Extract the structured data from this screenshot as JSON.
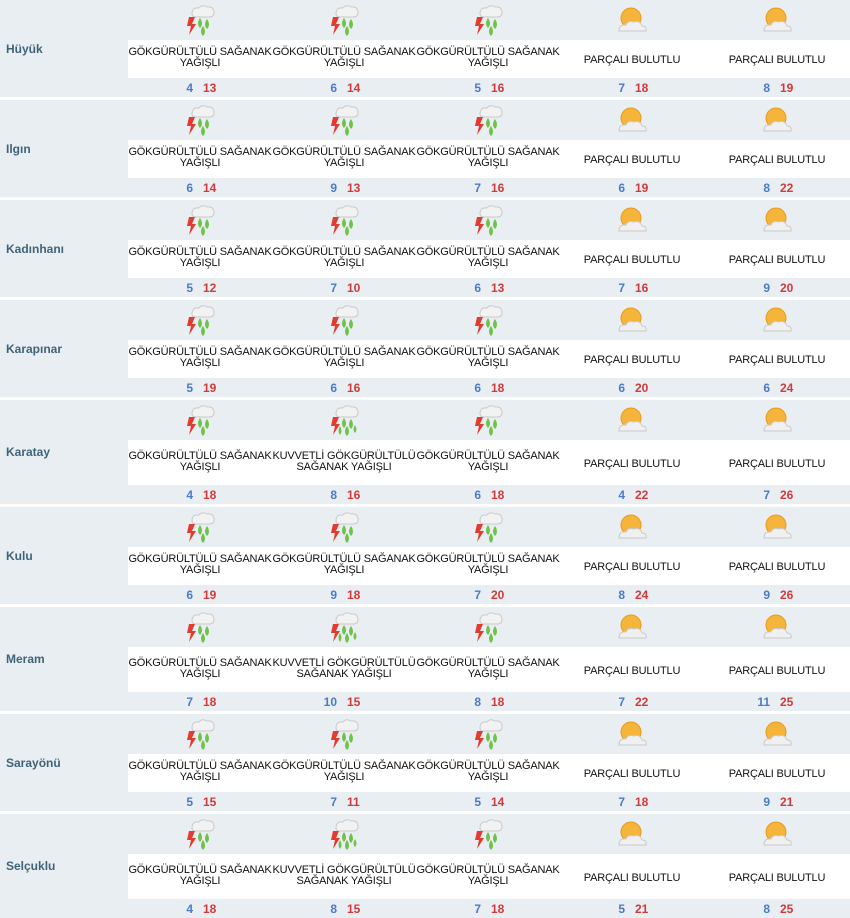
{
  "colors": {
    "row_bg": "#e9eef2",
    "city_text": "#3f6478",
    "temp_min": "#4a7bc4",
    "temp_max": "#d13a3a",
    "lightning": "#e23b2f",
    "rain_drop": "#6fc24b",
    "sun": "#f5b43a",
    "cloud": "#f0f0f0"
  },
  "rows": [
    {
      "city": "Hüyük",
      "days": [
        {
          "icon": "thunderstorm-icon",
          "cond": "GÖKGÜRÜLTÜLÜ SAĞANAK YAĞIŞLI",
          "min": "4",
          "max": "13"
        },
        {
          "icon": "thunderstorm-icon",
          "cond": "GÖKGÜRÜLTÜLÜ SAĞANAK YAĞIŞLI",
          "min": "6",
          "max": "14"
        },
        {
          "icon": "thunderstorm-icon",
          "cond": "GÖKGÜRÜLTÜLÜ SAĞANAK YAĞIŞLI",
          "min": "5",
          "max": "16"
        },
        {
          "icon": "partly-cloudy-icon",
          "cond": "PARÇALI BULUTLU",
          "min": "7",
          "max": "18"
        },
        {
          "icon": "partly-cloudy-icon",
          "cond": "PARÇALI BULUTLU",
          "min": "8",
          "max": "19"
        }
      ]
    },
    {
      "city": "Ilgın",
      "days": [
        {
          "icon": "thunderstorm-icon",
          "cond": "GÖKGÜRÜLTÜLÜ SAĞANAK YAĞIŞLI",
          "min": "6",
          "max": "14"
        },
        {
          "icon": "thunderstorm-icon",
          "cond": "GÖKGÜRÜLTÜLÜ SAĞANAK YAĞIŞLI",
          "min": "9",
          "max": "13"
        },
        {
          "icon": "thunderstorm-icon",
          "cond": "GÖKGÜRÜLTÜLÜ SAĞANAK YAĞIŞLI",
          "min": "7",
          "max": "16"
        },
        {
          "icon": "partly-cloudy-icon",
          "cond": "PARÇALI BULUTLU",
          "min": "6",
          "max": "19"
        },
        {
          "icon": "partly-cloudy-icon",
          "cond": "PARÇALI BULUTLU",
          "min": "8",
          "max": "22"
        }
      ]
    },
    {
      "city": "Kadınhanı",
      "days": [
        {
          "icon": "thunderstorm-icon",
          "cond": "GÖKGÜRÜLTÜLÜ SAĞANAK YAĞIŞLI",
          "min": "5",
          "max": "12"
        },
        {
          "icon": "thunderstorm-icon",
          "cond": "GÖKGÜRÜLTÜLÜ SAĞANAK YAĞIŞLI",
          "min": "7",
          "max": "10"
        },
        {
          "icon": "thunderstorm-icon",
          "cond": "GÖKGÜRÜLTÜLÜ SAĞANAK YAĞIŞLI",
          "min": "6",
          "max": "13"
        },
        {
          "icon": "partly-cloudy-icon",
          "cond": "PARÇALI BULUTLU",
          "min": "7",
          "max": "16"
        },
        {
          "icon": "partly-cloudy-icon",
          "cond": "PARÇALI BULUTLU",
          "min": "9",
          "max": "20"
        }
      ]
    },
    {
      "city": "Karapınar",
      "days": [
        {
          "icon": "thunderstorm-icon",
          "cond": "GÖKGÜRÜLTÜLÜ SAĞANAK YAĞIŞLI",
          "min": "5",
          "max": "19"
        },
        {
          "icon": "thunderstorm-icon",
          "cond": "GÖKGÜRÜLTÜLÜ SAĞANAK YAĞIŞLI",
          "min": "6",
          "max": "16"
        },
        {
          "icon": "thunderstorm-icon",
          "cond": "GÖKGÜRÜLTÜLÜ SAĞANAK YAĞIŞLI",
          "min": "6",
          "max": "18"
        },
        {
          "icon": "partly-cloudy-icon",
          "cond": "PARÇALI BULUTLU",
          "min": "6",
          "max": "20"
        },
        {
          "icon": "partly-cloudy-icon",
          "cond": "PARÇALI BULUTLU",
          "min": "6",
          "max": "24"
        }
      ]
    },
    {
      "city": "Karatay",
      "days": [
        {
          "icon": "thunderstorm-icon",
          "cond": "GÖKGÜRÜLTÜLÜ SAĞANAK YAĞIŞLI",
          "min": "4",
          "max": "18"
        },
        {
          "icon": "heavy-thunderstorm-icon",
          "cond": "KUVVETLİ GÖKGÜRÜLTÜLÜ SAĞANAK YAĞIŞLI",
          "min": "8",
          "max": "16"
        },
        {
          "icon": "thunderstorm-icon",
          "cond": "GÖKGÜRÜLTÜLÜ SAĞANAK YAĞIŞLI",
          "min": "6",
          "max": "18"
        },
        {
          "icon": "partly-cloudy-icon",
          "cond": "PARÇALI BULUTLU",
          "min": "4",
          "max": "22"
        },
        {
          "icon": "partly-cloudy-icon",
          "cond": "PARÇALI BULUTLU",
          "min": "7",
          "max": "26"
        }
      ]
    },
    {
      "city": "Kulu",
      "days": [
        {
          "icon": "thunderstorm-icon",
          "cond": "GÖKGÜRÜLTÜLÜ SAĞANAK YAĞIŞLI",
          "min": "6",
          "max": "19"
        },
        {
          "icon": "thunderstorm-icon",
          "cond": "GÖKGÜRÜLTÜLÜ SAĞANAK YAĞIŞLI",
          "min": "9",
          "max": "18"
        },
        {
          "icon": "thunderstorm-icon",
          "cond": "GÖKGÜRÜLTÜLÜ SAĞANAK YAĞIŞLI",
          "min": "7",
          "max": "20"
        },
        {
          "icon": "partly-cloudy-icon",
          "cond": "PARÇALI BULUTLU",
          "min": "8",
          "max": "24"
        },
        {
          "icon": "partly-cloudy-icon",
          "cond": "PARÇALI BULUTLU",
          "min": "9",
          "max": "26"
        }
      ]
    },
    {
      "city": "Meram",
      "days": [
        {
          "icon": "thunderstorm-icon",
          "cond": "GÖKGÜRÜLTÜLÜ SAĞANAK YAĞIŞLI",
          "min": "7",
          "max": "18"
        },
        {
          "icon": "heavy-thunderstorm-icon",
          "cond": "KUVVETLİ GÖKGÜRÜLTÜLÜ SAĞANAK YAĞIŞLI",
          "min": "10",
          "max": "15"
        },
        {
          "icon": "thunderstorm-icon",
          "cond": "GÖKGÜRÜLTÜLÜ SAĞANAK YAĞIŞLI",
          "min": "8",
          "max": "18"
        },
        {
          "icon": "partly-cloudy-icon",
          "cond": "PARÇALI BULUTLU",
          "min": "7",
          "max": "22"
        },
        {
          "icon": "partly-cloudy-icon",
          "cond": "PARÇALI BULUTLU",
          "min": "11",
          "max": "25"
        }
      ]
    },
    {
      "city": "Sarayönü",
      "days": [
        {
          "icon": "thunderstorm-icon",
          "cond": "GÖKGÜRÜLTÜLÜ SAĞANAK YAĞIŞLI",
          "min": "5",
          "max": "15"
        },
        {
          "icon": "thunderstorm-icon",
          "cond": "GÖKGÜRÜLTÜLÜ SAĞANAK YAĞIŞLI",
          "min": "7",
          "max": "11"
        },
        {
          "icon": "thunderstorm-icon",
          "cond": "GÖKGÜRÜLTÜLÜ SAĞANAK YAĞIŞLI",
          "min": "5",
          "max": "14"
        },
        {
          "icon": "partly-cloudy-icon",
          "cond": "PARÇALI BULUTLU",
          "min": "7",
          "max": "18"
        },
        {
          "icon": "partly-cloudy-icon",
          "cond": "PARÇALI BULUTLU",
          "min": "9",
          "max": "21"
        }
      ]
    },
    {
      "city": "Selçuklu",
      "days": [
        {
          "icon": "thunderstorm-icon",
          "cond": "GÖKGÜRÜLTÜLÜ SAĞANAK YAĞIŞLI",
          "min": "4",
          "max": "18"
        },
        {
          "icon": "heavy-thunderstorm-icon",
          "cond": "KUVVETLİ GÖKGÜRÜLTÜLÜ SAĞANAK YAĞIŞLI",
          "min": "8",
          "max": "15"
        },
        {
          "icon": "thunderstorm-icon",
          "cond": "GÖKGÜRÜLTÜLÜ SAĞANAK YAĞIŞLI",
          "min": "7",
          "max": "18"
        },
        {
          "icon": "partly-cloudy-icon",
          "cond": "PARÇALI BULUTLU",
          "min": "5",
          "max": "21"
        },
        {
          "icon": "partly-cloudy-icon",
          "cond": "PARÇALI BULUTLU",
          "min": "8",
          "max": "25"
        }
      ]
    }
  ]
}
